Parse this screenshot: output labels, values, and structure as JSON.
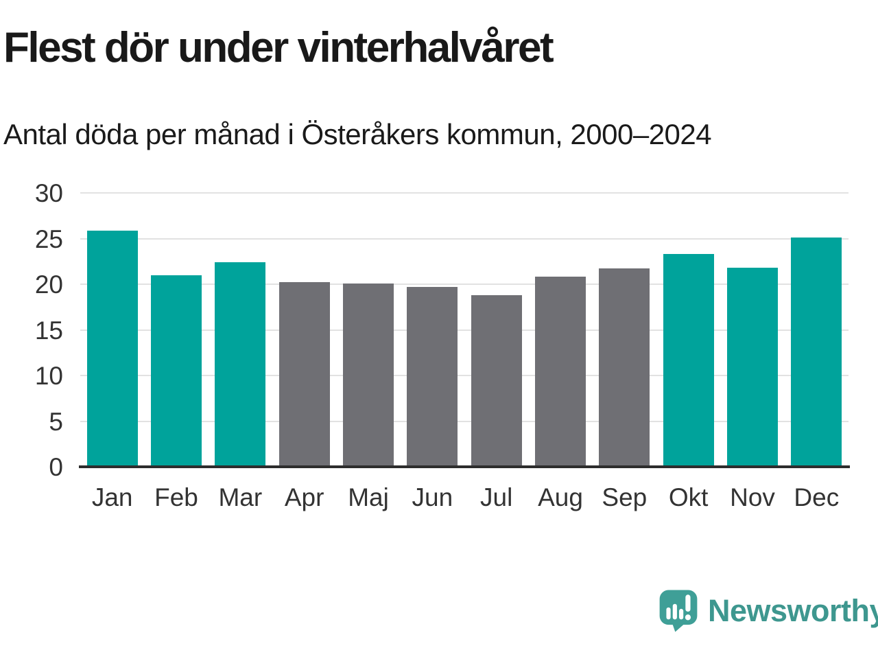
{
  "header": {
    "title": "Flest dör under vinterhalvåret",
    "subtitle": "Antal döda per månad i Österåkers kommun, 2000–2024"
  },
  "chart_data": {
    "type": "bar",
    "title": "Flest dör under vinterhalvåret",
    "subtitle": "Antal döda per månad i Österåkers kommun, 2000–2024",
    "categories": [
      "Jan",
      "Feb",
      "Mar",
      "Apr",
      "Maj",
      "Jun",
      "Jul",
      "Aug",
      "Sep",
      "Okt",
      "Nov",
      "Dec"
    ],
    "values": [
      25.9,
      21.0,
      22.4,
      20.2,
      20.1,
      19.7,
      18.8,
      20.8,
      21.7,
      23.3,
      21.8,
      25.1
    ],
    "xlabel": "",
    "ylabel": "",
    "ylim": [
      0,
      30
    ],
    "yticks": [
      0,
      5,
      10,
      15,
      20,
      25,
      30
    ],
    "grid": true,
    "legend": "none",
    "bar_groups": [
      "winter",
      "winter",
      "winter",
      "summer",
      "summer",
      "summer",
      "summer",
      "summer",
      "summer",
      "winter",
      "winter",
      "winter"
    ],
    "colors": {
      "winter": "#00a39b",
      "summer": "#6f6f74",
      "grid": "#e2e2e2",
      "axis": "#2d2d2d",
      "tick_text": "#333333"
    }
  },
  "branding": {
    "logo_text": "Newsworthy",
    "logo_icon": "newsworthy-speech-bubble-bar-chart-icon",
    "logo_text_color": "#3e978f",
    "logo_icon_color": "#3f9f97"
  }
}
